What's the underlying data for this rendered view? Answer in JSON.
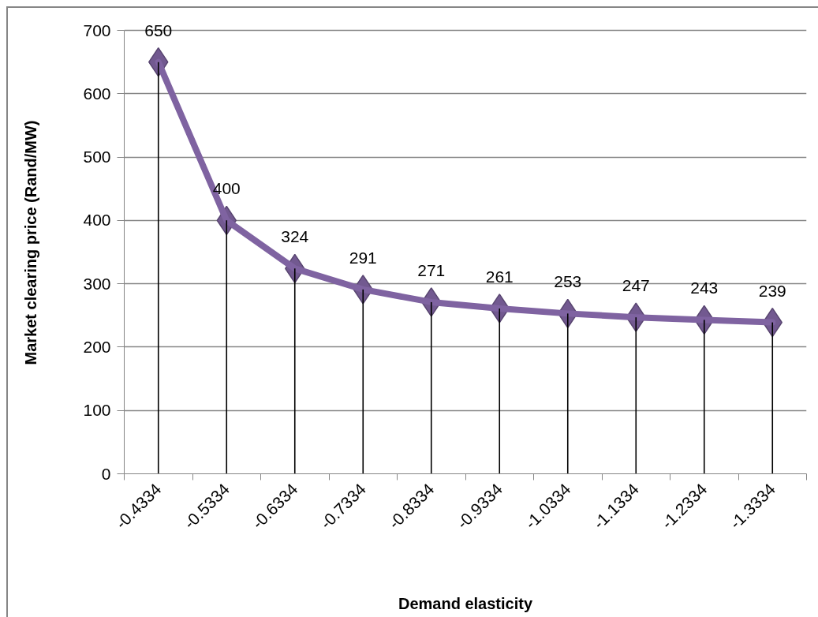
{
  "chart_data": {
    "type": "line",
    "xlabel": "Demand elasticity",
    "ylabel": "Market clearing price (Rand/MW)",
    "categories": [
      "-0.4334",
      "-0.5334",
      "-0.6334",
      "-0.7334",
      "-0.8334",
      "-0.9334",
      "-1.0334",
      "-1.1334",
      "-1.2334",
      "-1.3334"
    ],
    "series": [
      {
        "color": "#7f63a1",
        "values": [
          650,
          400,
          324,
          291,
          271,
          261,
          253,
          247,
          243,
          239
        ],
        "value_labels": [
          "650",
          "400",
          "324",
          "291",
          "271",
          "261",
          "253",
          "247",
          "243",
          "239"
        ]
      },
      {
        "type": "bar",
        "color": "#000000",
        "values": [
          650,
          400,
          324,
          291,
          271,
          261,
          253,
          247,
          243,
          239
        ]
      }
    ],
    "ylim": [
      0,
      700
    ],
    "yticks": [
      0,
      100,
      200,
      300,
      400,
      500,
      600,
      700
    ],
    "grid": "y",
    "marker": "diamond",
    "line_style": "solid"
  }
}
